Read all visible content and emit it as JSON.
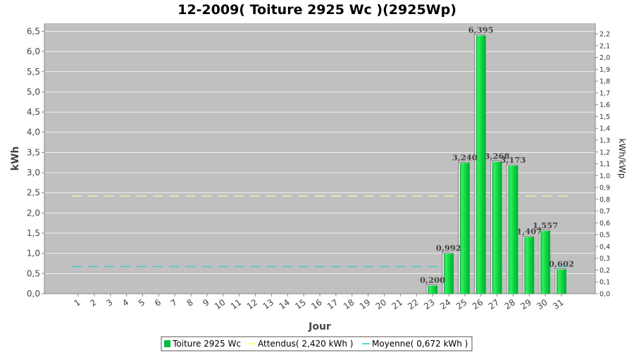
{
  "chart_data": {
    "type": "bar",
    "title": "12-2009( Toiture 2925 Wc )(2925Wp)",
    "xlabel": "Jour",
    "ylabel": "kWh",
    "y2label": "kWh/kWp",
    "ylim": [
      0,
      6.7
    ],
    "y2lim": [
      0,
      2.29
    ],
    "yticks": [
      "0,0",
      "0,5",
      "1,0",
      "1,5",
      "2,0",
      "2,5",
      "3,0",
      "3,5",
      "4,0",
      "4,5",
      "5,0",
      "5,5",
      "6,0",
      "6,5"
    ],
    "y2ticks": [
      "0,0",
      "0,1",
      "0,2",
      "0,3",
      "0,4",
      "0,5",
      "0,6",
      "0,7",
      "0,8",
      "0,9",
      "1,0",
      "1,1",
      "1,2",
      "1,3",
      "1,4",
      "1,5",
      "1,6",
      "1,7",
      "1,8",
      "1,9",
      "2,0",
      "2,1",
      "2,2"
    ],
    "categories": [
      "1",
      "2",
      "3",
      "4",
      "5",
      "6",
      "7",
      "8",
      "9",
      "10",
      "11",
      "12",
      "13",
      "14",
      "15",
      "16",
      "17",
      "18",
      "19",
      "20",
      "21",
      "22",
      "23",
      "24",
      "25",
      "26",
      "27",
      "28",
      "29",
      "30",
      "31"
    ],
    "series": [
      {
        "name": "Toiture 2925 Wc",
        "values": [
          0,
          0,
          0,
          0,
          0,
          0,
          0,
          0,
          0,
          0,
          0,
          0,
          0,
          0,
          0,
          0,
          0,
          0,
          0,
          0,
          0,
          0,
          0.2,
          0.992,
          3.24,
          6.395,
          3.268,
          3.173,
          1.407,
          1.557,
          0.602
        ],
        "labels": [
          "",
          "",
          "",
          "",
          "",
          "",
          "",
          "",
          "",
          "",
          "",
          "",
          "",
          "",
          "",
          "",
          "",
          "",
          "",
          "",
          "",
          "",
          "0,200",
          "0,992",
          "3,240",
          "6,395",
          "3,268",
          "3,173",
          "1,407",
          "1,557",
          "0,602"
        ],
        "color": "#00dd44"
      }
    ],
    "lines": [
      {
        "name": "Attendus( 2,420 kWh )",
        "value": 2.42,
        "color": "#ffff99"
      },
      {
        "name": "Moyenne( 0,672 kWh )",
        "value": 0.672,
        "color": "#33cccc"
      }
    ],
    "legend": [
      "Toiture 2925 Wc",
      "Attendus( 2,420 kWh )",
      "Moyenne( 0,672 kWh )"
    ],
    "legend_position": "bottom",
    "grid": true,
    "plot_background": "#c0c0c0"
  }
}
